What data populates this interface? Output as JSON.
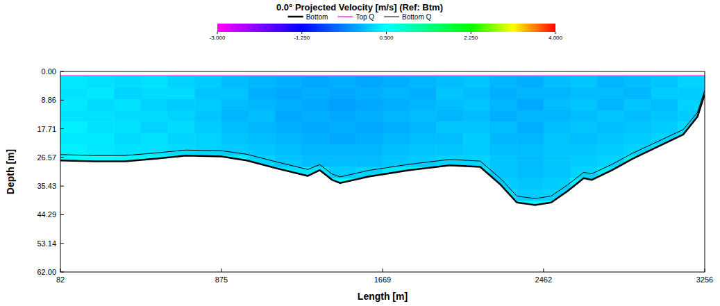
{
  "chart_data": {
    "type": "heatmap",
    "title": "0.0° Projected Velocity [m/s] (Ref: Btm)",
    "x_label": "Length [m]",
    "y_label": "Depth [m]",
    "xlim": [
      82,
      3256
    ],
    "xticks": [
      82,
      875,
      1669,
      2462,
      3256
    ],
    "ylim": [
      62,
      0
    ],
    "yticks": [
      {
        "value": 0,
        "label": "0.00"
      },
      8.86,
      17.71,
      26.57,
      35.43,
      44.29,
      53.14,
      {
        "value": 62,
        "label": "62.00"
      }
    ],
    "legend": "top",
    "series": [
      {
        "name": "Bottom",
        "color": "#000000",
        "x": [
          82,
          250,
          400,
          550,
          700,
          875,
          1000,
          1150,
          1300,
          1360,
          1420,
          1460,
          1600,
          1800,
          2000,
          2150,
          2250,
          2330,
          2420,
          2500,
          2580,
          2660,
          2700,
          2800,
          2900,
          3050,
          3150,
          3220,
          3256
        ],
        "values": [
          27.5,
          27.8,
          27.8,
          27.0,
          26.0,
          26.3,
          27.5,
          30.0,
          32.3,
          30.5,
          33.5,
          34.5,
          32.5,
          30.5,
          29.0,
          29.5,
          35.0,
          40.5,
          41.3,
          40.5,
          37.0,
          33.0,
          33.5,
          30.5,
          27.0,
          22.5,
          19.5,
          14.0,
          7.0
        ]
      },
      {
        "name": "Top Q",
        "color": "#ff00ff",
        "x": [
          82,
          3256
        ],
        "values": [
          1.3,
          1.3
        ]
      },
      {
        "name": "Bottom Q",
        "color": "#000000",
        "x": [
          82,
          250,
          400,
          550,
          700,
          875,
          1000,
          1150,
          1300,
          1360,
          1420,
          1460,
          1600,
          1800,
          2000,
          2150,
          2250,
          2330,
          2420,
          2500,
          2580,
          2660,
          2700,
          2800,
          2900,
          3050,
          3150,
          3220,
          3256
        ],
        "values": [
          25.7,
          26.0,
          26.0,
          25.2,
          24.3,
          24.5,
          25.6,
          28.0,
          30.3,
          28.8,
          31.7,
          32.6,
          30.6,
          28.7,
          27.2,
          27.7,
          33.1,
          38.5,
          39.3,
          38.5,
          35.1,
          31.2,
          31.6,
          28.7,
          25.3,
          20.9,
          18.0,
          12.7,
          5.8
        ]
      }
    ],
    "cells": {
      "x_edges": [
        82,
        214,
        346,
        478,
        611,
        743,
        875,
        1007,
        1140,
        1272,
        1404,
        1536,
        1669,
        1801,
        1933,
        2065,
        2198,
        2330,
        2462,
        2594,
        2726,
        2859,
        2991,
        3123,
        3256
      ],
      "depth_edges": [
        1.5,
        5,
        8.5,
        12,
        15.5,
        19,
        22.5,
        26,
        29.5,
        33,
        36.5,
        40,
        43.5
      ],
      "values": [
        [
          0.35,
          0.3,
          0.25,
          0.3,
          0.2,
          0.15,
          0.05,
          0.0,
          -0.05,
          -0.1,
          -0.05,
          -0.1,
          -0.05,
          0.0,
          0.05,
          0.1,
          0.0,
          -0.05,
          0.05,
          0.1,
          0.0,
          0.05,
          0.1,
          0.2
        ],
        [
          0.3,
          0.35,
          0.2,
          0.25,
          0.25,
          0.1,
          0.1,
          -0.05,
          -0.1,
          -0.05,
          -0.1,
          -0.05,
          0.0,
          -0.05,
          0.1,
          0.05,
          -0.05,
          0.0,
          0.0,
          0.05,
          0.05,
          0.0,
          0.15,
          0.15
        ],
        [
          0.35,
          0.25,
          0.3,
          0.2,
          0.15,
          0.15,
          0.05,
          0.0,
          -0.05,
          -0.1,
          -0.15,
          -0.1,
          -0.05,
          0.0,
          0.05,
          0.1,
          0.0,
          -0.1,
          0.05,
          0.1,
          0.0,
          0.1,
          0.05,
          0.2
        ],
        [
          0.3,
          0.3,
          0.25,
          0.25,
          0.2,
          0.1,
          0.0,
          0.05,
          -0.1,
          -0.05,
          -0.1,
          -0.05,
          0.0,
          0.05,
          0.0,
          0.05,
          -0.05,
          0.0,
          0.0,
          0.05,
          0.1,
          0.05,
          0.1,
          0.15
        ],
        [
          0.4,
          0.3,
          0.3,
          0.2,
          0.25,
          0.15,
          0.05,
          0.0,
          -0.05,
          -0.1,
          -0.05,
          -0.1,
          -0.05,
          0.0,
          0.1,
          0.1,
          0.05,
          -0.05,
          0.05,
          0.1,
          0.05,
          0.1,
          0.15,
          0.25
        ],
        [
          0.35,
          0.35,
          0.25,
          0.3,
          0.2,
          0.2,
          0.1,
          0.05,
          0.0,
          -0.05,
          -0.1,
          -0.05,
          0.0,
          0.05,
          0.05,
          0.15,
          0.0,
          0.0,
          0.1,
          0.05,
          0.1,
          0.15,
          0.2,
          0.3
        ],
        [
          0.4,
          0.35,
          0.3,
          0.3,
          0.25,
          0.2,
          0.15,
          0.1,
          0.05,
          0.0,
          0.0,
          0.0,
          0.05,
          0.1,
          0.1,
          0.15,
          0.05,
          0.05,
          0.1,
          0.1,
          0.15,
          0.2,
          0.3,
          null
        ],
        [
          0.5,
          0.5,
          0.45,
          0.45,
          0.45,
          0.4,
          0.4,
          0.2,
          0.1,
          0.05,
          0.05,
          0.05,
          0.1,
          0.15,
          0.2,
          0.2,
          0.1,
          0.05,
          0.1,
          0.15,
          0.2,
          0.4,
          null,
          null
        ],
        [
          null,
          null,
          null,
          null,
          null,
          null,
          null,
          0.45,
          0.3,
          0.3,
          0.15,
          0.2,
          0.35,
          0.45,
          0.45,
          0.3,
          0.1,
          0.05,
          0.1,
          0.2,
          0.35,
          null,
          null,
          null
        ],
        [
          null,
          null,
          null,
          null,
          null,
          null,
          null,
          null,
          null,
          null,
          0.45,
          0.45,
          null,
          null,
          null,
          null,
          0.15,
          0.1,
          0.15,
          0.4,
          null,
          null,
          null,
          null
        ],
        [
          null,
          null,
          null,
          null,
          null,
          null,
          null,
          null,
          null,
          null,
          null,
          null,
          null,
          null,
          null,
          null,
          0.25,
          0.15,
          0.2,
          null,
          null,
          null,
          null,
          null
        ],
        [
          null,
          null,
          null,
          null,
          null,
          null,
          null,
          null,
          null,
          null,
          null,
          null,
          null,
          null,
          null,
          null,
          0.45,
          0.45,
          0.45,
          null,
          null,
          null,
          null,
          null
        ]
      ]
    },
    "colorbar": {
      "range": [
        -3,
        4
      ],
      "ticks": [
        {
          "value": -3,
          "label": "-3.000"
        },
        {
          "value": -1.25,
          "label": "-1.250"
        },
        {
          "value": 0.5,
          "label": "0.500"
        },
        {
          "value": 2.25,
          "label": "2.250"
        },
        {
          "value": 4,
          "label": "4.000"
        }
      ]
    }
  }
}
